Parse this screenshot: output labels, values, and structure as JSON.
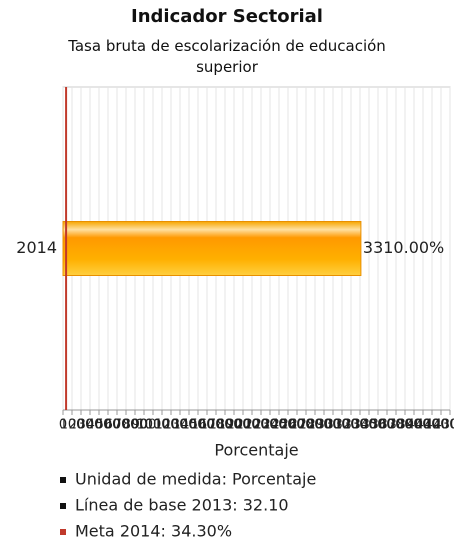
{
  "chart_data": {
    "type": "hbar",
    "title": "Indicador Sectorial",
    "subtitle": "Tasa bruta de escolarización de educación superior",
    "categories": [
      "2014"
    ],
    "values": [
      3310
    ],
    "value_labels": [
      "3310.00%"
    ],
    "xlim": [
      0,
      4300
    ],
    "xticks": [
      0,
      100,
      200,
      300,
      400,
      500,
      600,
      700,
      800,
      900,
      1000,
      1100,
      1200,
      1300,
      1400,
      1500,
      1600,
      1700,
      1800,
      1900,
      2000,
      2100,
      2200,
      2300,
      2400,
      2500,
      2600,
      2700,
      2800,
      2900,
      3000,
      3100,
      3200,
      3300,
      3400,
      3500,
      3600,
      3700,
      3800,
      3900,
      4000,
      4100,
      4200,
      4300
    ],
    "x_label": "Porcentaje",
    "grid": true,
    "reference_line": {
      "value": 34.3,
      "color": "#c0392b"
    },
    "notes": [
      {
        "text": "Unidad de medida: Porcentaje",
        "color": "#111111"
      },
      {
        "text": "Línea de base 2013: 32.10",
        "color": "#111111"
      },
      {
        "text": "Meta 2014: 34.30%",
        "color": "#c0392b"
      }
    ]
  }
}
